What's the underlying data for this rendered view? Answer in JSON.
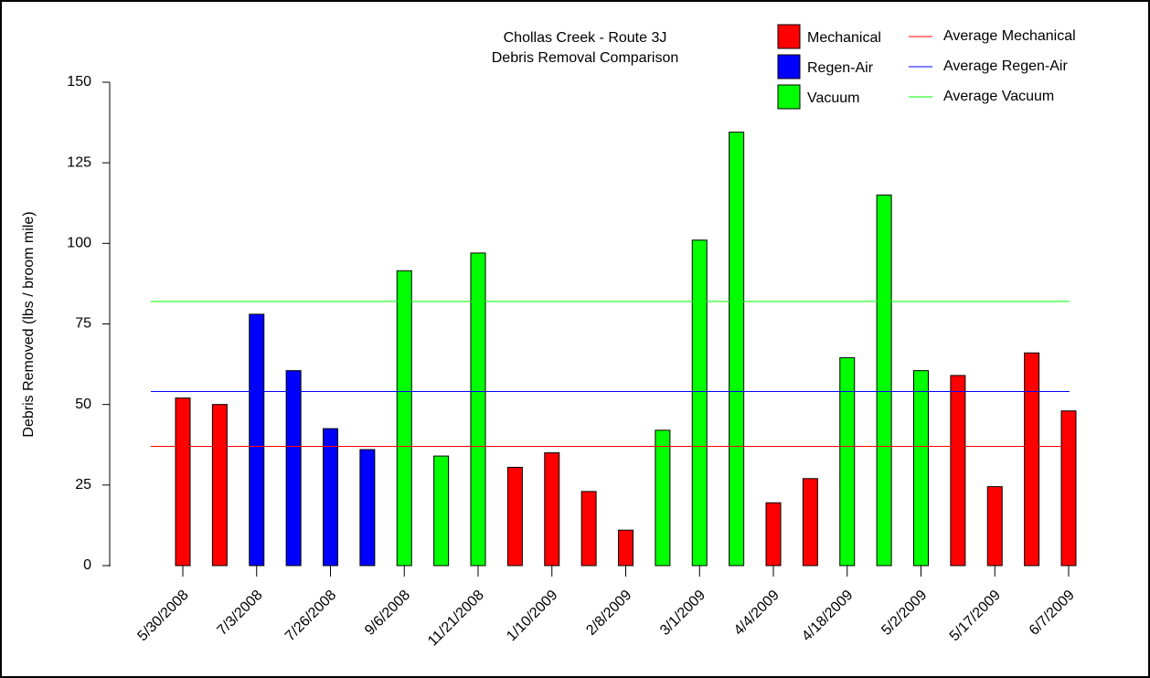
{
  "chart_data": {
    "type": "bar",
    "title": "Chollas Creek - Route 3J",
    "subtitle": "Debris Removal Comparison",
    "y_label": "Debris Removed (lbs / broom mile)",
    "categories": [
      "5/30/2008",
      null,
      "7/3/2008",
      null,
      "7/26/2008",
      null,
      "9/6/2008",
      null,
      "11/21/2008",
      null,
      "1/10/2009",
      null,
      "2/8/2009",
      null,
      "3/1/2009",
      null,
      "4/4/2009",
      null,
      "4/18/2009",
      null,
      "5/2/2009",
      null,
      "5/17/2009",
      null,
      "6/7/2009"
    ],
    "series": [
      {
        "name": "Mechanical",
        "color": "#ff0000",
        "values": [
          52,
          50,
          null,
          null,
          null,
          null,
          null,
          null,
          null,
          30.5,
          35,
          23,
          11,
          null,
          null,
          null,
          19.5,
          27,
          null,
          null,
          null,
          59,
          24.5,
          66,
          48
        ]
      },
      {
        "name": "Regen-Air",
        "color": "#0000ff",
        "values": [
          null,
          null,
          78,
          60.5,
          42.5,
          36,
          null,
          null,
          null,
          null,
          null,
          null,
          null,
          null,
          null,
          null,
          null,
          null,
          null,
          null,
          null,
          null,
          null,
          null,
          null
        ]
      },
      {
        "name": "Vacuum",
        "color": "#00ff00",
        "values": [
          null,
          null,
          null,
          null,
          null,
          null,
          91.5,
          34,
          97,
          null,
          null,
          null,
          null,
          42,
          101,
          134.5,
          null,
          null,
          64.5,
          115,
          60.5,
          null,
          null,
          null,
          null
        ]
      }
    ],
    "reference_lines": [
      {
        "name": "Average Mechanical",
        "color": "#ff0000",
        "value": 37
      },
      {
        "name": "Average Regen-Air",
        "color": "#0000ff",
        "value": 54
      },
      {
        "name": "Average Vacuum",
        "color": "#00ff00",
        "value": 82
      }
    ],
    "ylim": [
      0,
      150
    ],
    "yticks": [
      0,
      25,
      50,
      75,
      100,
      125,
      150
    ]
  }
}
